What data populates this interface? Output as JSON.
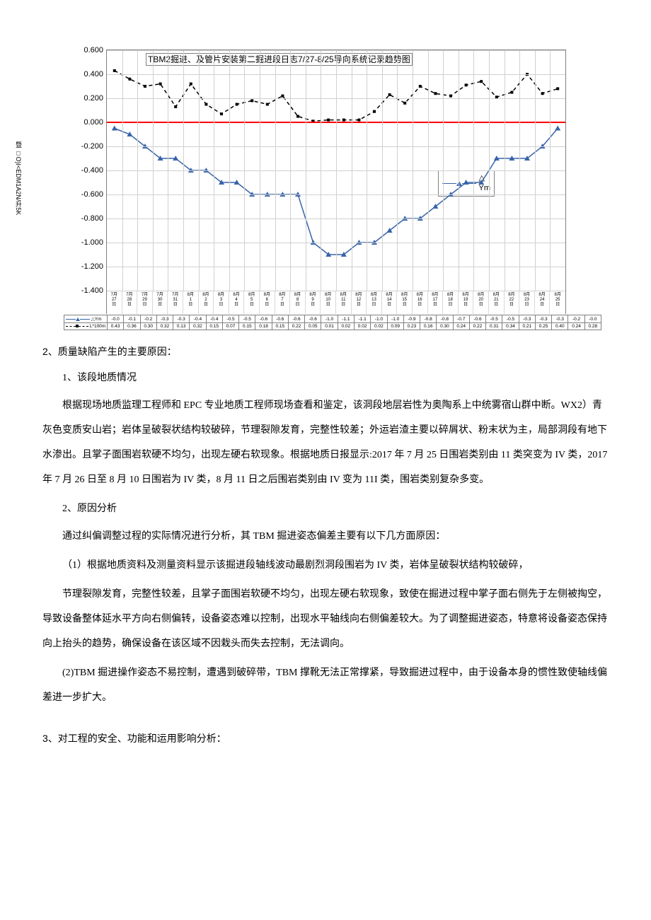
{
  "chart": {
    "type": "line",
    "title": "TBM2掘进、及管片安装第二掘进段日志7/27-8/25导向系统记录趋势图",
    "yaxis_title": "暨 □O)I<EDM1A2N/升5K",
    "ylim": [
      -1.4,
      0.6
    ],
    "ytick_labels": [
      "0.600",
      "0.400",
      "0.200",
      "0.000",
      "-0.200",
      "-0.400",
      "-0.600",
      "-0.800",
      "-1.000",
      "-1.200",
      "-1.400"
    ],
    "yticks": [
      0.6,
      0.4,
      0.2,
      0.0,
      -0.2,
      -0.4,
      -0.6,
      -0.8,
      -1.0,
      -1.2,
      -1.4
    ],
    "ref_line": 0.0,
    "line_color": "#3864aa",
    "dash_color": "#000000",
    "grid_color": "#d0d0d0",
    "ref_color": "#ff0000",
    "legend": {
      "items": [
        {
          "label": "△\nYm",
          "color": "#3864aa",
          "marker": "triangle"
        }
      ]
    },
    "categories": [
      "7月27日",
      "7月28日",
      "7月29日",
      "7月30日",
      "7月31日",
      "8月1日",
      "8月2日",
      "8月3日",
      "8月4日",
      "8月5日",
      "8月6日",
      "8月7日",
      "8月8日",
      "8月9日",
      "8月10日",
      "8月11日",
      "8月12日",
      "8月13日",
      "8月14日",
      "8月15日",
      "8月16日",
      "8月17日",
      "8月18日",
      "8月19日",
      "8月20日",
      "8月21日",
      "8月22日",
      "8月23日",
      "8月24日",
      "8月25日"
    ],
    "series_ym": [
      -0.05,
      -0.1,
      -0.2,
      -0.3,
      -0.3,
      -0.4,
      -0.4,
      -0.5,
      -0.5,
      -0.6,
      -0.6,
      -0.6,
      -0.6,
      -1.0,
      -1.1,
      -1.1,
      -1.0,
      -1.0,
      -0.9,
      -0.8,
      -0.8,
      -0.7,
      -0.6,
      -0.5,
      -0.5,
      -0.3,
      -0.3,
      -0.3,
      -0.2,
      -0.05
    ],
    "series_L": [
      0.43,
      0.36,
      0.3,
      0.32,
      0.13,
      0.32,
      0.15,
      0.07,
      0.15,
      0.18,
      0.15,
      0.22,
      0.05,
      0.01,
      0.02,
      0.02,
      0.02,
      0.09,
      0.23,
      0.16,
      0.3,
      0.24,
      0.22,
      0.31,
      0.34,
      0.21,
      0.25,
      0.4,
      0.24,
      0.28
    ],
    "row1_label": "△Ym",
    "row2_label": "L*100m",
    "row1_values": [
      "-0.0",
      "-0.1",
      "-0.2",
      "-0.3",
      "-0.3",
      "-0.4",
      "-0.4",
      "-0.5",
      "-0.5",
      "-0.6",
      "-0.6",
      "-0.6",
      "-0.6",
      "-1.0",
      "-1.1",
      "-1.1",
      "-1.0",
      "-1.0",
      "-0.9",
      "-0.8",
      "-0.8",
      "-0.7",
      "-0.6",
      "-0.5",
      "-0.5",
      "-0.3",
      "-0.3",
      "-0.3",
      "-0.2",
      "-0.0"
    ],
    "row2_values": [
      "0.43",
      "0.36",
      "0.30",
      "0.32",
      "0.13",
      "0.32",
      "0.15",
      "0.07",
      "0.15",
      "0.18",
      "0.15",
      "0.22",
      "0.05",
      "0.01",
      "0.02",
      "0.02",
      "0.02",
      "0.09",
      "0.23",
      "0.16",
      "0.30",
      "0.24",
      "0.22",
      "0.31",
      "0.34",
      "0.21",
      "0.25",
      "0.40",
      "0.24",
      "0.28"
    ]
  },
  "text": {
    "h2": "2、质量缺陷产生的主要原因：",
    "s1": "1、该段地质情况",
    "p1": "根据现场地质监理工程师和 EPC 专业地质工程师现场查看和鉴定，该洞段地层岩性为奥陶系上中统雾宿山群中断。WX2）青灰色变质安山岩；岩体呈破裂状结构较破碎，节理裂隙发育，完整性较差；外运岩渣主要以碎屑状、粉末状为主，局部洞段有地下水渗出。且掌子面围岩软硬不均匀，出现左硬右软现象。根据地质日报显示:2017 年 7 月 25 日围岩类别由 11 类突变为 IV 类，2017 年 7 月 26 日至 8 月 10 日围岩为 IV 类，8 月 11 日之后围岩类别由 IV 变为 11I 类，围岩类别复杂多变。",
    "s2": "2、原因分析",
    "p2": "通过纠偏调整过程的实际情况进行分析，其 TBM 掘进姿态偏差主要有以下几方面原因：",
    "p3a": "（1）根据地质资料及测量资料显示该掘进段轴线波动最剧烈洞段围岩为 IV 类，岩体呈破裂状结构较破碎，",
    "p3b": "节理裂隙发育，完整性较差，且掌子面围岩软硬不均匀，出现左硬右软现象，致使在掘进过程中掌子面右侧先于左侧被掏空，导致设备整体延水平方向右侧偏转，设备姿态难以控制，出现水平轴线向右侧偏差较大。为了调整掘进姿态，特意将设备姿态保持向上抬头的趋势，确保设备在该区域不因栽头而失去控制，无法调向。",
    "p4": "(2)TBM 掘进操作姿态不易控制，遭遇到破碎带，TBM 撑靴无法正常撑紧，导致掘进过程中，由于设备本身的惯性致使轴线偏差进一步扩大。",
    "h3": "3、对工程的安全、功能和运用影响分析："
  }
}
